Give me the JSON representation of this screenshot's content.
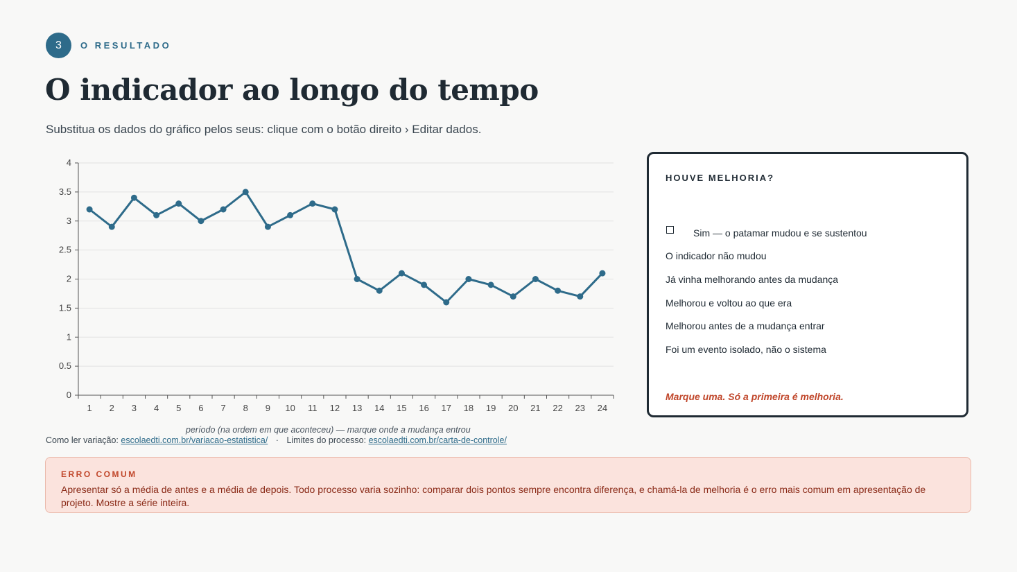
{
  "header": {
    "step_number": "3",
    "step_label": "O RESULTADO",
    "title": "O indicador ao longo do tempo",
    "subtitle": "Substitua os dados do gráfico pelos seus: clique com o botão direito › Editar dados."
  },
  "chart_data": {
    "type": "line",
    "x": [
      1,
      2,
      3,
      4,
      5,
      6,
      7,
      8,
      9,
      10,
      11,
      12,
      13,
      14,
      15,
      16,
      17,
      18,
      19,
      20,
      21,
      22,
      23,
      24
    ],
    "series": [
      {
        "values": [
          3.2,
          2.9,
          3.4,
          3.1,
          3.3,
          3.0,
          3.2,
          3.5,
          2.9,
          3.1,
          3.3,
          3.2,
          2.0,
          1.8,
          2.1,
          1.9,
          1.6,
          2.0,
          1.9,
          1.7,
          2.0,
          1.8,
          1.7,
          2.1
        ]
      }
    ],
    "xlabel": "período (na ordem em que aconteceu) — marque onde a mudança entrou",
    "ylabel": "",
    "ylim": [
      0,
      4
    ],
    "yticks": [
      "0",
      "0.5",
      "1",
      "1.5",
      "2",
      "2.5",
      "3",
      "3.5",
      "4"
    ],
    "grid": true,
    "color": "#2e6b8a"
  },
  "links": {
    "variation_prefix": "Como ler variação:",
    "variation_url": "escolaedti.com.br/variacao-estatistica/",
    "separator": "·",
    "limits_prefix": "Limites do processo:",
    "limits_url": "escolaedti.com.br/carta-de-controle/"
  },
  "card": {
    "title": "HOUVE MELHORIA?",
    "options": [
      "Sim — o patamar mudou e se sustentou",
      "O indicador não mudou",
      "Já vinha melhorando antes da mudança",
      "Melhorou e voltou ao que era",
      "Melhorou antes de a mudança entrar",
      "Foi um evento isolado, não o sistema"
    ],
    "hint": "Marque uma. Só a primeira é melhoria."
  },
  "error": {
    "title": "ERRO COMUM",
    "text": "Apresentar só a média de antes e a média de depois. Todo processo varia sozinho: comparar dois pontos sempre encontra diferença, e chamá-la de melhoria é o erro mais comum em apresentação de projeto. Mostre a série inteira."
  },
  "colors": {
    "accent": "#2e6b8a",
    "warning": "#c0462a",
    "warning_bg": "#fbe3dd"
  }
}
